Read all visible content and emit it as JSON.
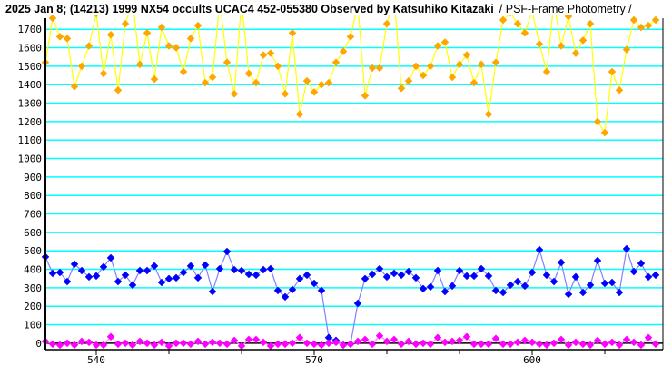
{
  "chart_data": {
    "type": "line",
    "title": "2025 Jan 8; (14213) 1999 NX54 occults UCAC4 452-055380 Observed by Katsuhiko Kitazaki",
    "subtitle": "/ PSF-Frame Photometry /",
    "xlabel": "",
    "ylabel": "",
    "xlim": [
      533,
      618
    ],
    "ylim": [
      -35,
      1760
    ],
    "x_ticks": [
      540,
      570,
      600
    ],
    "x_minor_ticks": [
      550,
      560,
      580,
      590,
      610
    ],
    "y_ticks": [
      0,
      100,
      200,
      300,
      400,
      500,
      600,
      700,
      800,
      900,
      1000,
      1100,
      1200,
      1300,
      1400,
      1500,
      1600,
      1700
    ],
    "grid": true,
    "grid_color": "#00ffff",
    "x_start": 533,
    "series": [
      {
        "color": "#ffa500",
        "line_color": "#ffff00",
        "values": [
          1520,
          1760,
          1660,
          1650,
          1390,
          1500,
          1610,
          1785,
          1460,
          1670,
          1370,
          1730,
          1850,
          1510,
          1680,
          1430,
          1710,
          1610,
          1600,
          1470,
          1650,
          1720,
          1410,
          1440,
          1850,
          1520,
          1350,
          1850,
          1460,
          1410,
          1560,
          1570,
          1500,
          1350,
          1680,
          1240,
          1420,
          1360,
          1400,
          1410,
          1520,
          1580,
          1660,
          1830,
          1340,
          1490,
          1490,
          1730,
          1870,
          1380,
          1420,
          1500,
          1450,
          1500,
          1610,
          1630,
          1440,
          1510,
          1560,
          1410,
          1510,
          1240,
          1520,
          1750,
          1790,
          1730,
          1680,
          1800,
          1620,
          1470,
          1850,
          1610,
          1770,
          1570,
          1640,
          1730,
          1200,
          1140,
          1470,
          1370,
          1590,
          1750,
          1710,
          1720,
          1750
        ]
      },
      {
        "color": "#0000ff",
        "line_color": "#8080ff",
        "values": [
          467,
          378,
          383,
          334,
          428,
          393,
          359,
          364,
          413,
          462,
          334,
          369,
          315,
          393,
          393,
          418,
          329,
          349,
          354,
          383,
          418,
          354,
          423,
          280,
          403,
          496,
          398,
          393,
          373,
          369,
          398,
          403,
          285,
          251,
          290,
          349,
          369,
          324,
          285,
          30,
          15,
          -10,
          -5,
          216,
          349,
          373,
          403,
          359,
          378,
          369,
          388,
          354,
          295,
          305,
          393,
          280,
          310,
          393,
          364,
          364,
          403,
          364,
          285,
          275,
          315,
          334,
          310,
          383,
          506,
          369,
          334,
          437,
          265,
          359,
          275,
          315,
          447,
          324,
          329,
          275,
          511,
          388,
          432,
          359,
          369
        ]
      },
      {
        "color": "#ff00ff",
        "line_color": "#ff80ff",
        "values": [
          10,
          -5,
          -10,
          0,
          -10,
          10,
          5,
          -10,
          -10,
          35,
          -5,
          0,
          -10,
          10,
          0,
          -10,
          5,
          -15,
          0,
          0,
          -5,
          10,
          -5,
          5,
          0,
          -5,
          15,
          -15,
          20,
          20,
          5,
          -15,
          -5,
          -5,
          0,
          30,
          0,
          -5,
          -10,
          0,
          5,
          -10,
          -5,
          10,
          20,
          -5,
          40,
          10,
          20,
          -5,
          10,
          -5,
          0,
          -5,
          30,
          5,
          10,
          15,
          35,
          -5,
          -5,
          -5,
          25,
          -5,
          -5,
          5,
          15,
          5,
          -5,
          -10,
          0,
          20,
          -10,
          5,
          -5,
          -10,
          15,
          -5,
          5,
          -10,
          20,
          5,
          -10,
          30,
          -5
        ]
      }
    ]
  }
}
